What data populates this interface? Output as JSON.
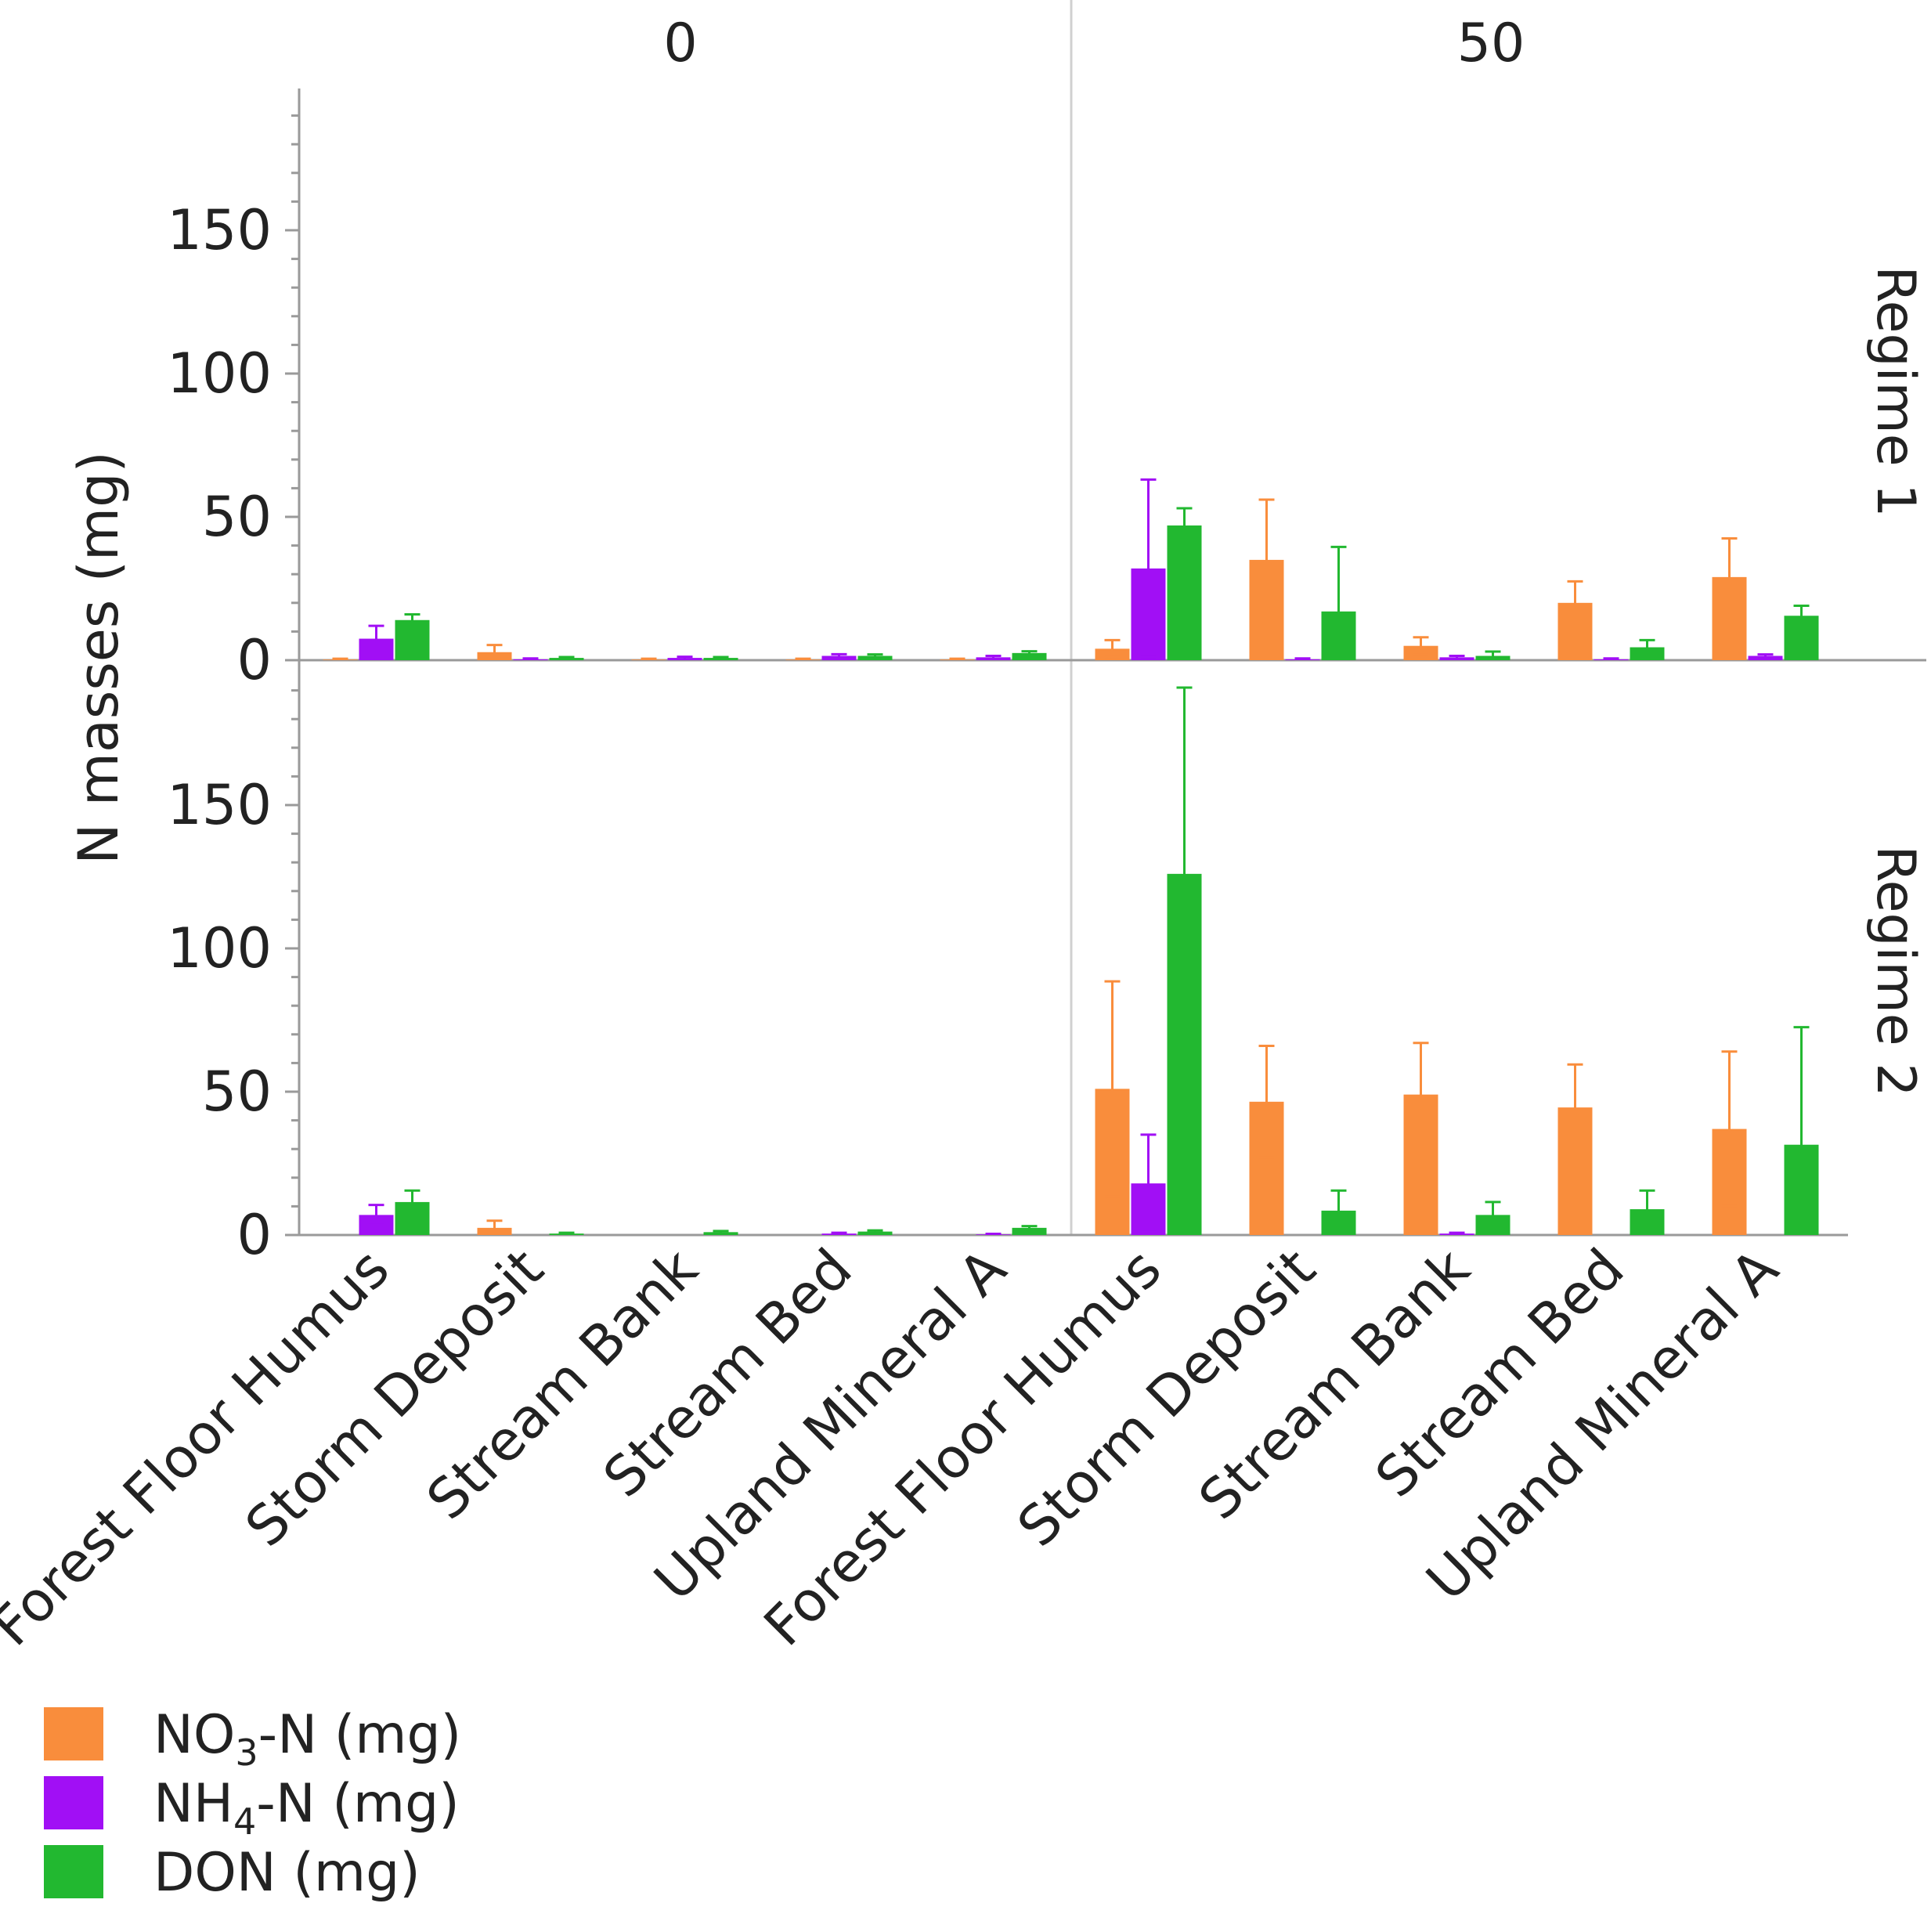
{
  "chart_data": {
    "type": "bar",
    "ylabel": "N masses (mg)",
    "ylim": [
      0,
      190
    ],
    "yticks": [
      0,
      50,
      100,
      150
    ],
    "columns": [
      "0",
      "50"
    ],
    "rows": [
      "Regime 1",
      "Regime 2"
    ],
    "categories": [
      "Forest Floor Humus",
      "Storm Deposit",
      "Stream Bank",
      "Stream Bed",
      "Upland Mineral A"
    ],
    "legend": [
      {
        "name": "NO",
        "sub": "3",
        "suffix": "-N (mg)",
        "color": "#f98d3c"
      },
      {
        "name": "NH",
        "sub": "4",
        "suffix": "-N (mg)",
        "color": "#a10ff5"
      },
      {
        "name": "DON (mg)",
        "sub": "",
        "suffix": "",
        "color": "#22b830"
      }
    ],
    "panels": [
      {
        "row": "Regime 1",
        "col": "0",
        "series": [
          {
            "name": "NO3-N (mg)",
            "values": [
              0.2,
              2.8,
              0.2,
              0.2,
              0.2
            ],
            "err": [
              0.3,
              2.5,
              0.3,
              0.3,
              0.3
            ]
          },
          {
            "name": "NH4-N (mg)",
            "values": [
              7.5,
              0.3,
              0.8,
              1.5,
              1.0
            ],
            "err": [
              4.5,
              0.3,
              0.4,
              0.6,
              0.5
            ]
          },
          {
            "name": "DON (mg)",
            "values": [
              14,
              0.8,
              0.8,
              1.5,
              2.5
            ],
            "err": [
              2.0,
              0.3,
              0.3,
              0.5,
              0.6
            ]
          }
        ]
      },
      {
        "row": "Regime 1",
        "col": "50",
        "series": [
          {
            "name": "NO3-N (mg)",
            "values": [
              4,
              35,
              5,
              20,
              29
            ],
            "err": [
              3,
              21,
              3,
              7.5,
              13.5
            ]
          },
          {
            "name": "NH4-N (mg)",
            "values": [
              32,
              0.3,
              1.0,
              0.3,
              1.5
            ],
            "err": [
              31,
              0.3,
              0.5,
              0.3,
              0.5
            ]
          },
          {
            "name": "DON (mg)",
            "values": [
              47,
              17,
              1.5,
              4.5,
              15.5
            ],
            "err": [
              6,
              22.5,
              1.5,
              2.5,
              3.5
            ]
          }
        ]
      },
      {
        "row": "Regime 2",
        "col": "0",
        "series": [
          {
            "name": "NO3-N (mg)",
            "values": [
              0,
              2.5,
              0,
              0,
              0
            ],
            "err": [
              0,
              2.5,
              0,
              0,
              0
            ]
          },
          {
            "name": "NH4-N (mg)",
            "values": [
              7,
              0,
              0,
              0.5,
              0.2
            ],
            "err": [
              3.5,
              0,
              0,
              0.3,
              0.2
            ]
          },
          {
            "name": "DON (mg)",
            "values": [
              11.5,
              0.5,
              1.0,
              1.2,
              2.5
            ],
            "err": [
              4,
              0.3,
              0.4,
              0.4,
              0.6
            ]
          }
        ]
      },
      {
        "row": "Regime 2",
        "col": "50",
        "series": [
          {
            "name": "NO3-N (mg)",
            "values": [
              51,
              46.5,
              49,
              44.5,
              37
            ],
            "err": [
              37.5,
              19.5,
              18,
              15,
              27
            ]
          },
          {
            "name": "NH4-N (mg)",
            "values": [
              18,
              0,
              0.5,
              0,
              0
            ],
            "err": [
              17,
              0,
              0.3,
              0,
              0
            ]
          },
          {
            "name": "DON (mg)",
            "values": [
              126,
              8.5,
              7,
              9,
              31.5
            ],
            "err": [
              65,
              7,
              4.5,
              6.5,
              41
            ]
          }
        ]
      }
    ]
  }
}
